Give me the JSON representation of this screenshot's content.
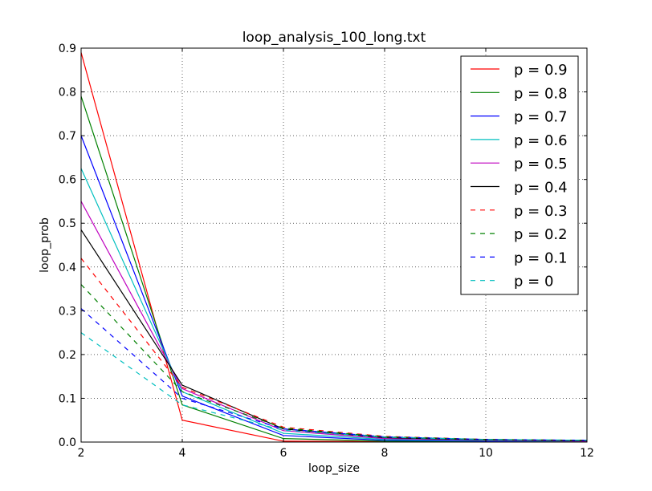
{
  "chart_data": {
    "type": "line",
    "title": "loop_analysis_100_long.txt",
    "xlabel": "loop_size",
    "ylabel": "loop_prob",
    "xlim": [
      2,
      12
    ],
    "ylim": [
      0,
      0.9
    ],
    "x": [
      2,
      4,
      6,
      8,
      10,
      12
    ],
    "xticks": [
      "2",
      "4",
      "6",
      "8",
      "10",
      "12"
    ],
    "yticks": [
      "0.0",
      "0.1",
      "0.2",
      "0.3",
      "0.4",
      "0.5",
      "0.6",
      "0.7",
      "0.8",
      "0.9"
    ],
    "grid": true,
    "legend_position": "top-right",
    "series": [
      {
        "name": "p = 0.9",
        "color": "#ff0000",
        "dash": "solid",
        "values": [
          0.89,
          0.05,
          0.002,
          0.001,
          0.0005,
          0.0002
        ]
      },
      {
        "name": "p = 0.8",
        "color": "#008000",
        "dash": "solid",
        "values": [
          0.79,
          0.085,
          0.008,
          0.002,
          0.001,
          0.0005
        ]
      },
      {
        "name": "p = 0.7",
        "color": "#0000ff",
        "dash": "solid",
        "values": [
          0.7,
          0.105,
          0.015,
          0.004,
          0.002,
          0.001
        ]
      },
      {
        "name": "p = 0.6",
        "color": "#00bfbf",
        "dash": "solid",
        "values": [
          0.625,
          0.115,
          0.02,
          0.006,
          0.003,
          0.0015
        ]
      },
      {
        "name": "p = 0.5",
        "color": "#bf00bf",
        "dash": "solid",
        "values": [
          0.55,
          0.122,
          0.026,
          0.008,
          0.004,
          0.002
        ]
      },
      {
        "name": "p = 0.4",
        "color": "#000000",
        "dash": "solid",
        "values": [
          0.485,
          0.13,
          0.03,
          0.01,
          0.005,
          0.003
        ]
      },
      {
        "name": "p = 0.3",
        "color": "#ff0000",
        "dash": "dashed",
        "values": [
          0.42,
          0.125,
          0.034,
          0.013,
          0.006,
          0.004
        ]
      },
      {
        "name": "p = 0.2",
        "color": "#008000",
        "dash": "dashed",
        "values": [
          0.36,
          0.115,
          0.032,
          0.012,
          0.006,
          0.004
        ]
      },
      {
        "name": "p = 0.1",
        "color": "#0000ff",
        "dash": "dashed",
        "values": [
          0.305,
          0.1,
          0.03,
          0.012,
          0.006,
          0.004
        ]
      },
      {
        "name": "p = 0",
        "color": "#00bfbf",
        "dash": "dashed",
        "values": [
          0.25,
          0.085,
          0.027,
          0.011,
          0.006,
          0.004
        ]
      }
    ]
  }
}
